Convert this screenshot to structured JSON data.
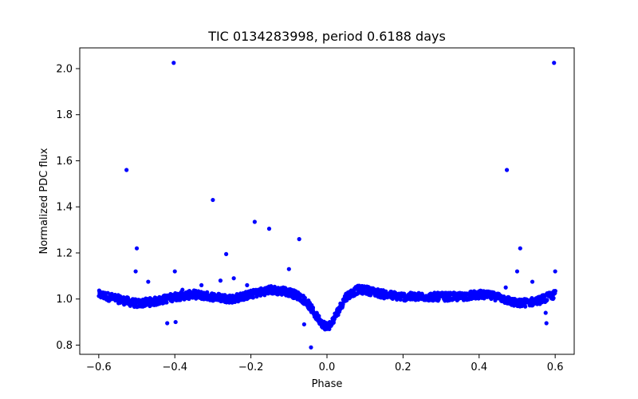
{
  "chart_data": {
    "type": "scatter",
    "title": "TIC 0134283998, period 0.6188 days",
    "xlabel": "Phase",
    "ylabel": "Normalized PDC flux",
    "xlim": [
      -0.65,
      0.65
    ],
    "ylim": [
      0.76,
      2.09
    ],
    "grid": false,
    "legend": "none",
    "marker_color": "#0000ff",
    "xticks": [
      -0.6,
      -0.4,
      -0.2,
      0.0,
      0.2,
      0.4,
      0.6
    ],
    "xtick_labels": [
      "−0.6",
      "−0.4",
      "−0.2",
      "0.0",
      "0.2",
      "0.4",
      "0.6"
    ],
    "yticks": [
      0.8,
      1.0,
      1.2,
      1.4,
      1.6,
      1.8,
      2.0
    ],
    "ytick_labels": [
      "0.8",
      "1.0",
      "1.2",
      "1.4",
      "1.6",
      "1.8",
      "2.0"
    ],
    "baseline_curve": {
      "description": "light curve trend",
      "x": [
        -0.6,
        -0.55,
        -0.5,
        -0.45,
        -0.4,
        -0.35,
        -0.3,
        -0.25,
        -0.2,
        -0.15,
        -0.1,
        -0.07,
        -0.05,
        -0.03,
        -0.01,
        0.0,
        0.01,
        0.03,
        0.05,
        0.08,
        0.1,
        0.15,
        0.2,
        0.25,
        0.3,
        0.35,
        0.4,
        0.45,
        0.5,
        0.55,
        0.6
      ],
      "y": [
        1.02,
        1.0,
        0.98,
        0.99,
        1.01,
        1.02,
        1.01,
        1.0,
        1.02,
        1.04,
        1.03,
        1.01,
        0.98,
        0.93,
        0.89,
        0.88,
        0.89,
        0.95,
        1.01,
        1.04,
        1.04,
        1.02,
        1.01,
        1.01,
        1.01,
        1.01,
        1.02,
        1.01,
        0.98,
        0.99,
        1.02
      ]
    },
    "outliers": {
      "x": [
        -0.527,
        -0.403,
        -0.3,
        -0.19,
        -0.152,
        -0.073,
        -0.5,
        -0.503,
        -0.265,
        -0.1,
        -0.4,
        -0.245,
        -0.47,
        -0.042,
        -0.06,
        -0.42,
        -0.398,
        0.473,
        0.597,
        0.508,
        0.6,
        0.5,
        0.54,
        0.577,
        0.575,
        0.47,
        -0.38,
        -0.33,
        -0.28,
        -0.21,
        -0.115,
        0.0
      ],
      "y": [
        1.56,
        2.025,
        1.43,
        1.335,
        1.305,
        1.26,
        1.22,
        1.12,
        1.195,
        1.13,
        1.12,
        1.09,
        1.075,
        0.79,
        0.89,
        0.895,
        0.9,
        1.56,
        2.025,
        1.22,
        1.12,
        1.12,
        1.075,
        0.895,
        0.94,
        1.05,
        1.04,
        1.06,
        1.08,
        1.06,
        1.05,
        0.87
      ]
    }
  }
}
